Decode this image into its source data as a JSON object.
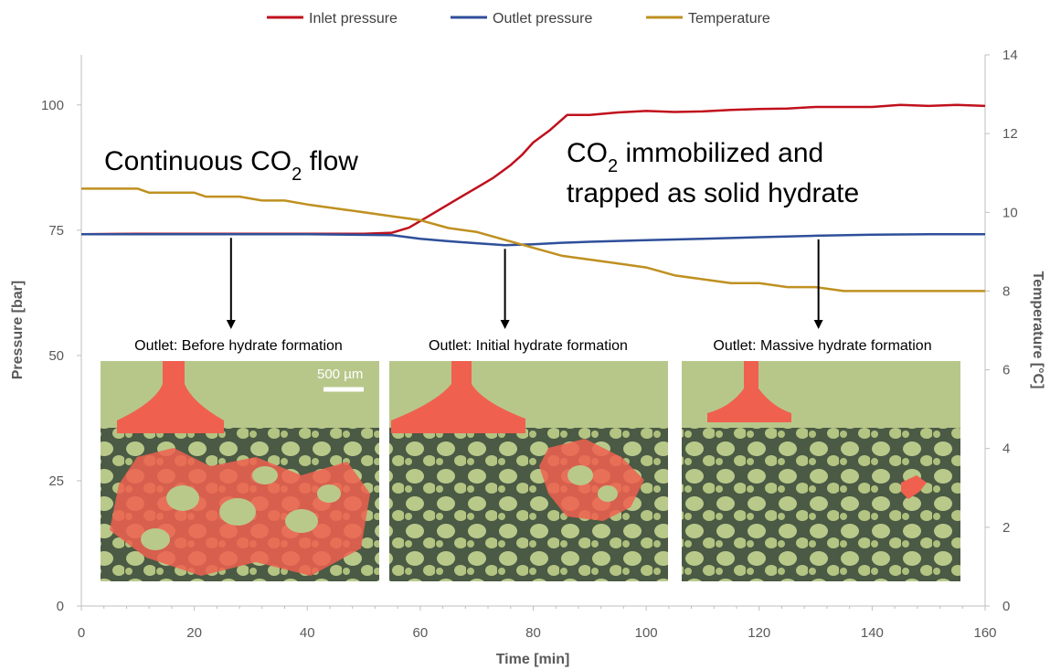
{
  "chart_data": {
    "type": "line",
    "x_axis": {
      "label": "Time [min]",
      "min": 0,
      "max": 160,
      "ticks": [
        0,
        20,
        40,
        60,
        80,
        100,
        120,
        140,
        160
      ]
    },
    "y_left": {
      "label": "Pressure [bar]",
      "min": 0,
      "max": 110,
      "ticks": [
        0,
        25,
        50,
        75,
        100
      ]
    },
    "y_right": {
      "label": "Temperature [°C]",
      "min": 0,
      "max": 14,
      "ticks": [
        0,
        2,
        4,
        6,
        8,
        10,
        12,
        14
      ]
    },
    "grid": false,
    "legend_position": "top-center",
    "series": [
      {
        "name": "Inlet pressure",
        "axis": "left",
        "color": "#c0101c",
        "points": [
          [
            0,
            74.2
          ],
          [
            10,
            74.3
          ],
          [
            20,
            74.3
          ],
          [
            30,
            74.3
          ],
          [
            40,
            74.3
          ],
          [
            50,
            74.3
          ],
          [
            55,
            74.5
          ],
          [
            58,
            75.5
          ],
          [
            61,
            77.5
          ],
          [
            64,
            79.5
          ],
          [
            67,
            81.5
          ],
          [
            70,
            83.5
          ],
          [
            73,
            85.5
          ],
          [
            76,
            88
          ],
          [
            78,
            90
          ],
          [
            80,
            92.5
          ],
          [
            83,
            95
          ],
          [
            86,
            98
          ],
          [
            90,
            98
          ],
          [
            95,
            98.5
          ],
          [
            100,
            98.8
          ],
          [
            105,
            98.6
          ],
          [
            110,
            98.7
          ],
          [
            115,
            99
          ],
          [
            120,
            99.2
          ],
          [
            125,
            99.3
          ],
          [
            130,
            99.6
          ],
          [
            135,
            99.6
          ],
          [
            140,
            99.6
          ],
          [
            145,
            100
          ],
          [
            150,
            99.8
          ],
          [
            155,
            100
          ],
          [
            160,
            99.8
          ]
        ]
      },
      {
        "name": "Outlet pressure",
        "axis": "left",
        "color": "#2f4f9a",
        "points": [
          [
            0,
            74.2
          ],
          [
            20,
            74.2
          ],
          [
            40,
            74.2
          ],
          [
            55,
            74.0
          ],
          [
            60,
            73.3
          ],
          [
            65,
            72.8
          ],
          [
            70,
            72.4
          ],
          [
            75,
            72.0
          ],
          [
            80,
            72.2
          ],
          [
            85,
            72.5
          ],
          [
            90,
            72.7
          ],
          [
            100,
            73.0
          ],
          [
            110,
            73.3
          ],
          [
            120,
            73.6
          ],
          [
            130,
            73.9
          ],
          [
            140,
            74.1
          ],
          [
            150,
            74.2
          ],
          [
            160,
            74.2
          ]
        ]
      },
      {
        "name": "Temperature",
        "axis": "right",
        "color": "#bf9020",
        "points": [
          [
            0,
            10.6
          ],
          [
            5,
            10.6
          ],
          [
            10,
            10.6
          ],
          [
            12,
            10.5
          ],
          [
            15,
            10.5
          ],
          [
            20,
            10.5
          ],
          [
            22,
            10.4
          ],
          [
            28,
            10.4
          ],
          [
            32,
            10.3
          ],
          [
            36,
            10.3
          ],
          [
            40,
            10.2
          ],
          [
            45,
            10.1
          ],
          [
            50,
            10.0
          ],
          [
            55,
            9.9
          ],
          [
            60,
            9.8
          ],
          [
            65,
            9.6
          ],
          [
            70,
            9.5
          ],
          [
            75,
            9.3
          ],
          [
            80,
            9.1
          ],
          [
            85,
            8.9
          ],
          [
            90,
            8.8
          ],
          [
            95,
            8.7
          ],
          [
            100,
            8.6
          ],
          [
            105,
            8.4
          ],
          [
            110,
            8.3
          ],
          [
            115,
            8.2
          ],
          [
            120,
            8.2
          ],
          [
            125,
            8.1
          ],
          [
            130,
            8.1
          ],
          [
            135,
            8.0
          ],
          [
            140,
            8.0
          ],
          [
            150,
            8.0
          ],
          [
            160,
            8.0
          ]
        ]
      }
    ],
    "annotations": [
      {
        "text_main": "Continuous CO",
        "subscript": "2",
        "text_rest": " flow"
      },
      {
        "line1_main": "CO",
        "line1_subscript": "2",
        "line1_rest": " immobilized and",
        "line2": "trapped as solid hydrate"
      }
    ],
    "arrow_targets_time": [
      26.5,
      75,
      130.5
    ],
    "panels": [
      {
        "label": "Outlet: Before hydrate formation",
        "scale_bar": "500 µm"
      },
      {
        "label": "Outlet: Initial hydrate formation"
      },
      {
        "label": "Outlet: Massive hydrate formation"
      }
    ]
  }
}
